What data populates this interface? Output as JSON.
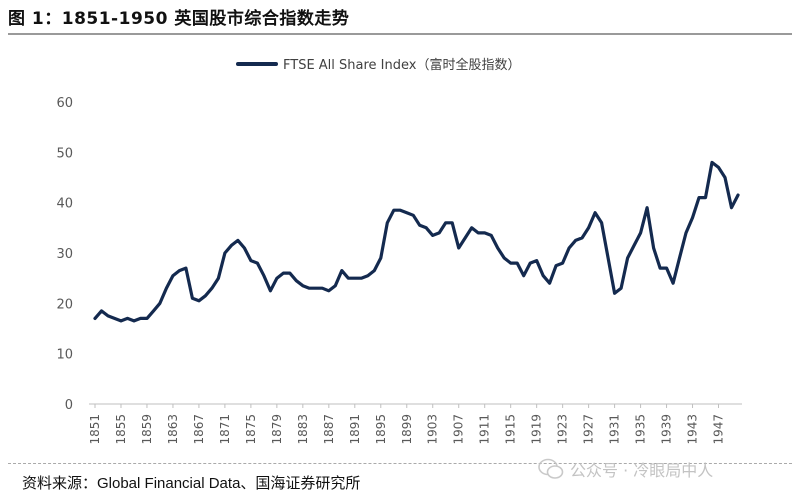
{
  "figure": {
    "title": "图 1：1851-1950 英国股市综合指数走势",
    "source": "资料来源：Global Financial Data、国海证券研究所",
    "watermark": "公众号 · 冷眼局中人"
  },
  "colors": {
    "line": "#142a4f",
    "axis": "#bfbfbf",
    "text": "#595959"
  },
  "chart_data": {
    "type": "line",
    "title": "",
    "xlabel": "",
    "ylabel": "",
    "ylim": [
      0,
      60
    ],
    "yticks": [
      0,
      10,
      20,
      30,
      40,
      50,
      60
    ],
    "xlim": [
      1851,
      1950
    ],
    "xticks": [
      1851,
      1855,
      1859,
      1863,
      1867,
      1871,
      1875,
      1879,
      1883,
      1887,
      1891,
      1895,
      1899,
      1903,
      1907,
      1911,
      1915,
      1919,
      1923,
      1927,
      1931,
      1935,
      1939,
      1943,
      1947
    ],
    "grid": false,
    "legend_position": "top-center",
    "series": [
      {
        "name": "FTSE All Share Index（富时全股指数）",
        "x": [
          1851,
          1852,
          1853,
          1854,
          1855,
          1856,
          1857,
          1858,
          1859,
          1860,
          1861,
          1862,
          1863,
          1864,
          1865,
          1866,
          1867,
          1868,
          1869,
          1870,
          1871,
          1872,
          1873,
          1874,
          1875,
          1876,
          1877,
          1878,
          1879,
          1880,
          1881,
          1882,
          1883,
          1884,
          1885,
          1886,
          1887,
          1888,
          1889,
          1890,
          1891,
          1892,
          1893,
          1894,
          1895,
          1896,
          1897,
          1898,
          1899,
          1900,
          1901,
          1902,
          1903,
          1904,
          1905,
          1906,
          1907,
          1908,
          1909,
          1910,
          1911,
          1912,
          1913,
          1914,
          1915,
          1916,
          1917,
          1918,
          1919,
          1920,
          1921,
          1922,
          1923,
          1924,
          1925,
          1926,
          1927,
          1928,
          1929,
          1930,
          1931,
          1932,
          1933,
          1934,
          1935,
          1936,
          1937,
          1938,
          1939,
          1940,
          1941,
          1942,
          1943,
          1944,
          1945,
          1946,
          1947,
          1948,
          1949,
          1950
        ],
        "values": [
          17,
          18.5,
          17.5,
          17,
          16.5,
          17,
          16.5,
          17,
          17,
          18.5,
          20,
          23,
          25.5,
          26.5,
          27,
          21,
          20.5,
          21.5,
          23,
          25,
          30,
          31.5,
          32.5,
          31,
          28.5,
          28,
          25.5,
          22.5,
          25,
          26,
          26,
          24.5,
          23.5,
          23,
          23,
          23,
          22.5,
          23.5,
          26.5,
          25,
          25,
          25,
          25.5,
          26.5,
          29,
          36,
          38.5,
          38.5,
          38,
          37.5,
          35.5,
          35,
          33.5,
          34,
          36,
          36,
          31,
          33,
          35,
          34,
          34,
          33.5,
          31,
          29,
          28,
          28,
          25.5,
          28,
          28.5,
          25.5,
          24,
          27.5,
          28,
          31,
          32.5,
          33,
          35,
          38,
          36,
          29,
          22,
          23,
          29,
          31.5,
          34,
          39,
          31,
          27,
          27,
          24,
          29,
          34,
          37,
          41,
          41,
          48,
          47,
          45,
          39,
          41.5
        ]
      }
    ]
  }
}
